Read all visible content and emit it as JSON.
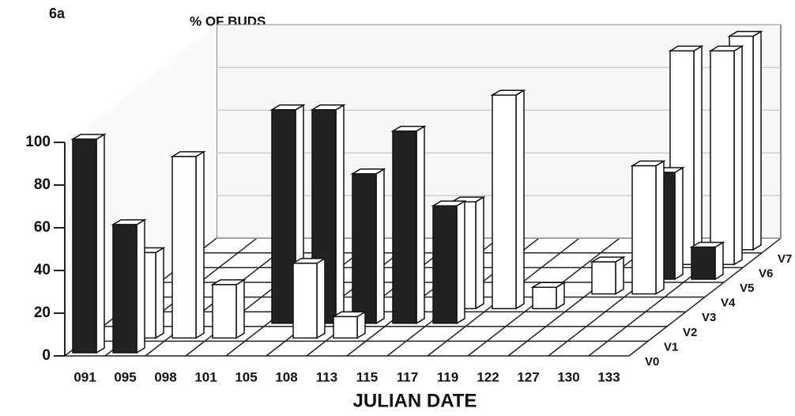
{
  "chart_data": {
    "type": "bar3d",
    "title": "6a",
    "y_label": "% OF BUDS",
    "x_label": "JULIAN DATE",
    "categories": [
      "091",
      "095",
      "098",
      "101",
      "105",
      "108",
      "113",
      "115",
      "117",
      "119",
      "122",
      "127",
      "130",
      "133"
    ],
    "series": [
      {
        "name": "V0",
        "color": "#222222",
        "values": [
          100,
          60,
          null,
          null,
          null,
          null,
          null,
          null,
          null,
          null,
          null,
          null,
          null,
          null
        ]
      },
      {
        "name": "V1",
        "color": "#ffffff",
        "values": [
          null,
          40,
          85,
          25,
          null,
          35,
          10,
          null,
          null,
          null,
          null,
          null,
          null,
          null
        ]
      },
      {
        "name": "V2",
        "color": "#222222",
        "values": [
          null,
          null,
          null,
          null,
          100,
          100,
          70,
          90,
          55,
          null,
          null,
          null,
          null,
          null
        ]
      },
      {
        "name": "V3",
        "color": "#ffffff",
        "values": [
          null,
          null,
          null,
          null,
          null,
          null,
          null,
          null,
          50,
          100,
          10,
          null,
          null,
          null
        ]
      },
      {
        "name": "V4",
        "color": "#ffffff",
        "values": [
          null,
          null,
          null,
          null,
          null,
          null,
          null,
          null,
          null,
          null,
          null,
          15,
          60,
          null
        ]
      },
      {
        "name": "V5",
        "color": "#222222",
        "values": [
          null,
          null,
          null,
          null,
          null,
          null,
          null,
          null,
          null,
          null,
          null,
          null,
          50,
          15
        ]
      },
      {
        "name": "V6",
        "color": "#ffffff",
        "values": [
          null,
          null,
          null,
          null,
          null,
          null,
          null,
          null,
          null,
          null,
          null,
          null,
          100,
          100
        ]
      },
      {
        "name": "V7",
        "color": "#ffffff",
        "values": [
          null,
          null,
          null,
          null,
          null,
          null,
          null,
          null,
          null,
          null,
          null,
          null,
          null,
          100
        ]
      }
    ],
    "ylim": [
      0,
      100
    ],
    "yticks": [
      0,
      20,
      40,
      60,
      80,
      100
    ]
  }
}
